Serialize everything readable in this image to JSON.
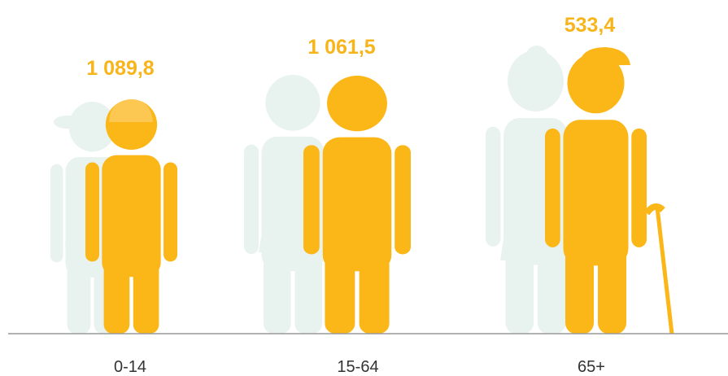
{
  "groups": [
    {
      "label": "0-14",
      "value": "1 089,8"
    },
    {
      "label": "15-64",
      "value": "1 061,5"
    },
    {
      "label": "65+",
      "value": "533,4"
    }
  ]
}
